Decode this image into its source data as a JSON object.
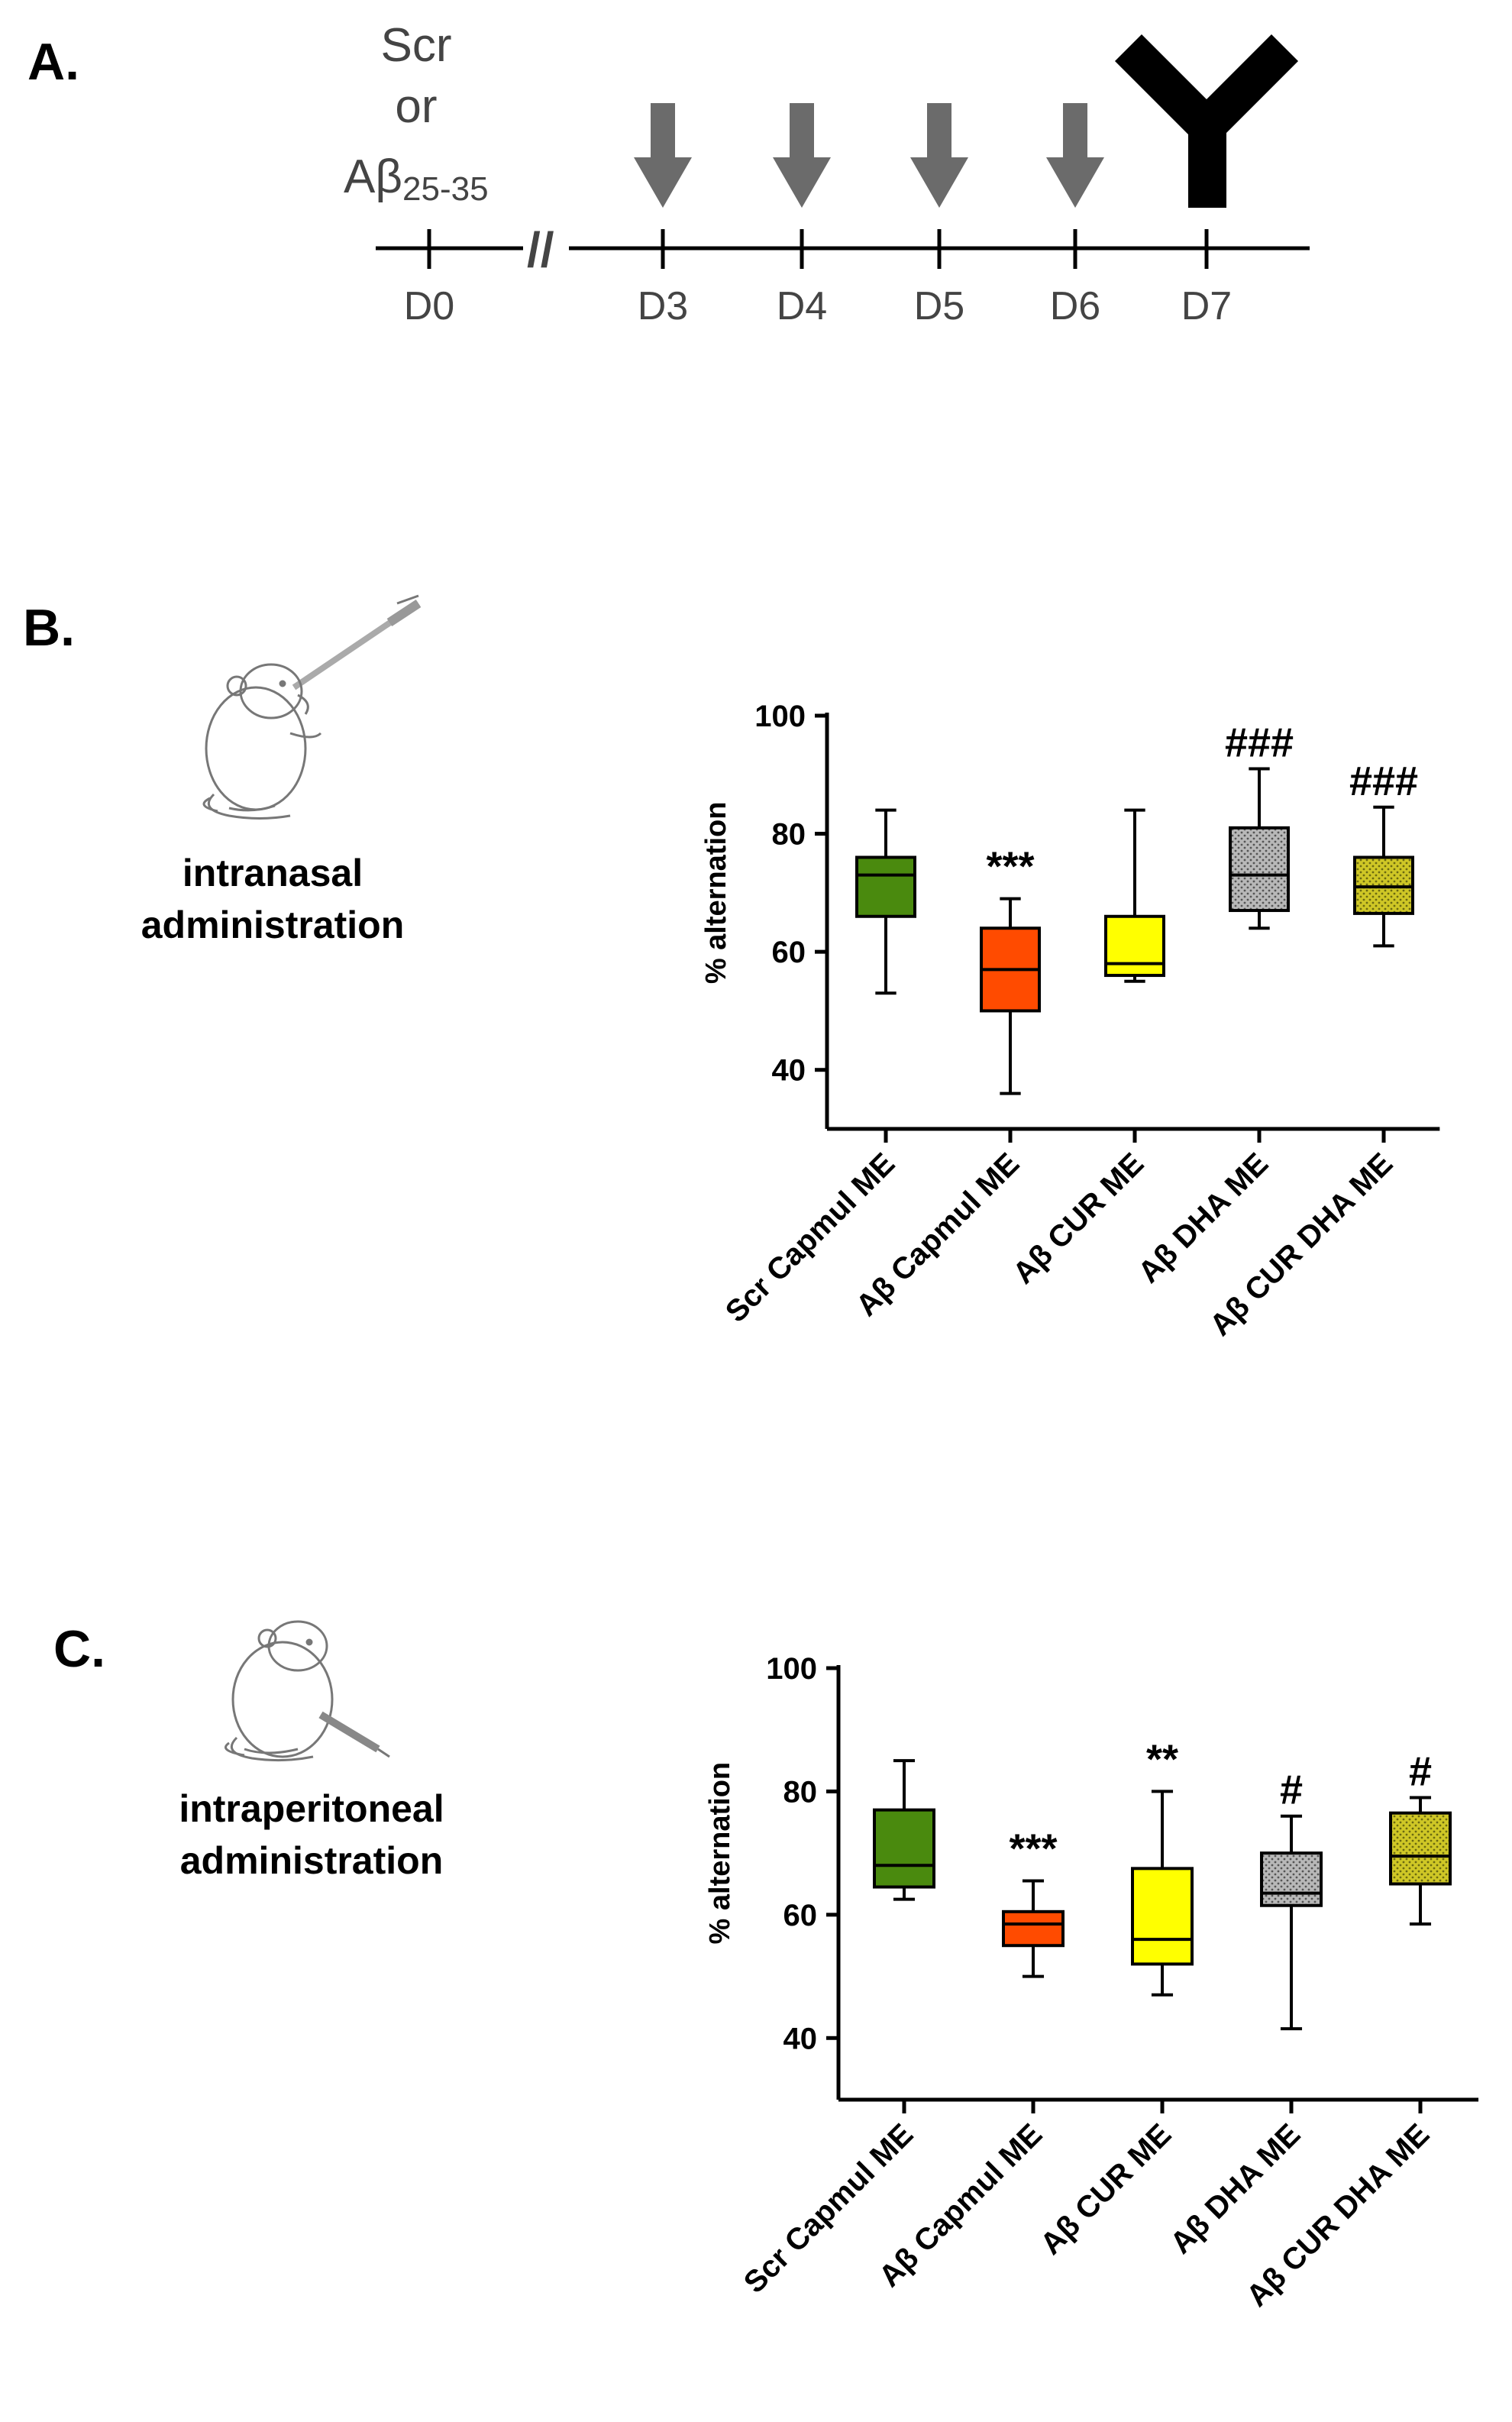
{
  "panels": {
    "a": "A.",
    "b": "B.",
    "c": "C."
  },
  "timeline": {
    "treatment_lines": [
      "Scr",
      "or",
      "Aβ"
    ],
    "treatment_subscript": "25-35",
    "days": [
      "D0",
      "D3",
      "D4",
      "D5",
      "D6",
      "D7"
    ],
    "break_mark": "//",
    "arrow_days": [
      "D3",
      "D4",
      "D5",
      "D6"
    ],
    "maze_day": "D7"
  },
  "routes": {
    "intranasal": [
      "intranasal",
      "administration"
    ],
    "intraperitoneal": [
      "intraperitoneal",
      "administration"
    ]
  },
  "chart_data": [
    {
      "type": "box",
      "panel": "B",
      "route": "intranasal administration",
      "ylabel": "% alternation",
      "ylim": [
        30,
        100
      ],
      "yticks": [
        40,
        60,
        80,
        100
      ],
      "categories": [
        "Scr Capmul ME",
        "Aβ Capmul ME",
        "Aβ CUR ME",
        "Aβ DHA ME",
        "Aβ CUR DHA ME"
      ],
      "colors": [
        "#4a8a0e",
        "#ff4b00",
        "#ffff00",
        "#b4b4b4",
        "#c8c21e"
      ],
      "patterned": [
        false,
        false,
        false,
        true,
        true
      ],
      "boxes": [
        {
          "min": 53,
          "q1": 66,
          "median": 73,
          "q3": 76,
          "max": 84
        },
        {
          "min": 36,
          "q1": 50,
          "median": 57,
          "q3": 64,
          "max": 69
        },
        {
          "min": 55,
          "q1": 56,
          "median": 58,
          "q3": 66,
          "max": 84
        },
        {
          "min": 64,
          "q1": 67,
          "median": 73,
          "q3": 81,
          "max": 91
        },
        {
          "min": 61,
          "q1": 66.5,
          "median": 71,
          "q3": 76,
          "max": 84.5
        }
      ],
      "annotations": [
        "",
        "***",
        "",
        "###",
        "###"
      ]
    },
    {
      "type": "box",
      "panel": "C",
      "route": "intraperitoneal administration",
      "ylabel": "% alternation",
      "ylim": [
        30,
        100
      ],
      "yticks": [
        40,
        60,
        80,
        100
      ],
      "categories": [
        "Scr Capmul ME",
        "Aβ Capmul ME",
        "Aβ CUR ME",
        "Aβ DHA ME",
        "Aβ CUR DHA ME"
      ],
      "colors": [
        "#4a8a0e",
        "#ff4b00",
        "#ffff00",
        "#b4b4b4",
        "#c8c21e"
      ],
      "patterned": [
        false,
        false,
        false,
        true,
        true
      ],
      "boxes": [
        {
          "min": 62.5,
          "q1": 64.5,
          "median": 68,
          "q3": 77,
          "max": 85
        },
        {
          "min": 50,
          "q1": 55,
          "median": 58.5,
          "q3": 60.5,
          "max": 65.5
        },
        {
          "min": 47,
          "q1": 52,
          "median": 56,
          "q3": 67.5,
          "max": 80
        },
        {
          "min": 41.5,
          "q1": 61.5,
          "median": 63.5,
          "q3": 70,
          "max": 76
        },
        {
          "min": 58.5,
          "q1": 65,
          "median": 69.5,
          "q3": 76.5,
          "max": 79
        }
      ],
      "annotations": [
        "",
        "***",
        "**",
        "#",
        "#"
      ]
    }
  ]
}
